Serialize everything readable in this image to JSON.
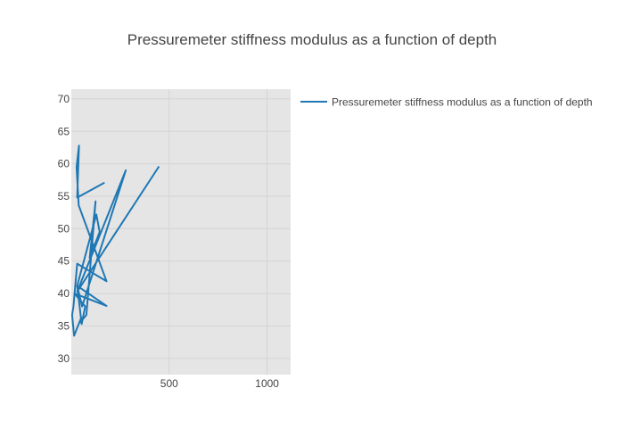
{
  "chart_data": {
    "type": "line",
    "title": "Pressuremeter stiffness modulus as a function of depth",
    "xlabel": "",
    "ylabel": "",
    "xlim": [
      0,
      1120
    ],
    "ylim": [
      27.5,
      71.5
    ],
    "xticks": [
      500,
      1000
    ],
    "yticks": [
      30,
      35,
      40,
      45,
      50,
      55,
      60,
      65,
      70
    ],
    "grid": true,
    "legend_position": "right",
    "colors": {
      "series": "#1f77b4",
      "plot_bg": "#e5e5e5",
      "grid": "#d4d4d4",
      "text": "#444444"
    },
    "series": [
      {
        "name": "Pressuremeter stiffness modulus as a function of depth",
        "x": [
          170,
          30,
          39,
          27,
          38,
          180,
          30,
          11,
          4,
          14,
          51,
          46,
          77,
          124,
          94,
          145,
          128,
          30,
          53,
          71,
          17,
          180,
          30,
          55,
          278,
          30,
          448
        ],
        "y": [
          57.1,
          54.8,
          62.8,
          59.5,
          53.6,
          41.9,
          44.6,
          38.0,
          36.7,
          33.5,
          36.3,
          35.6,
          36.7,
          54.2,
          45.5,
          49.5,
          52.2,
          41.2,
          35.3,
          38.0,
          40.0,
          38.1,
          41.2,
          38.0,
          59.0,
          40.3,
          59.6
        ]
      }
    ]
  }
}
